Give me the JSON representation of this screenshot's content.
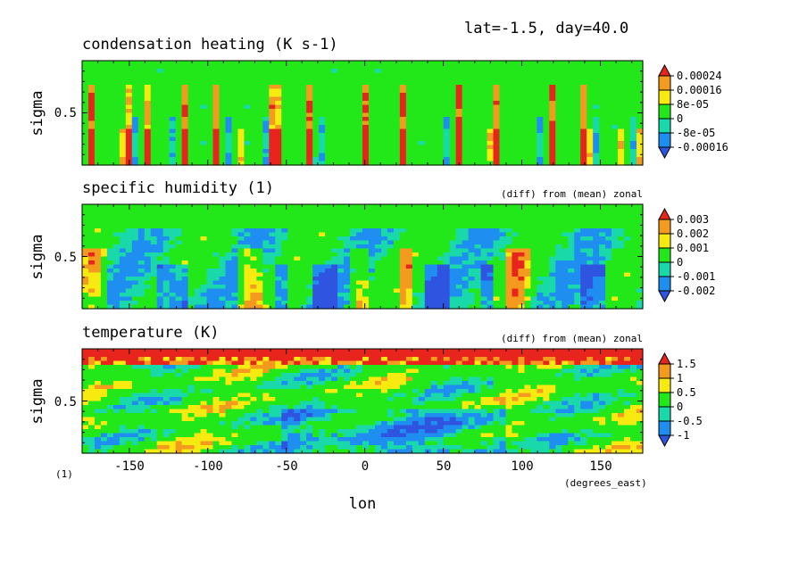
{
  "header": {
    "subtitle": "lat=-1.5, day=40.0"
  },
  "x_axis": {
    "label": "lon",
    "units": "(degrees_east)",
    "ticks": [
      "-150",
      "-100",
      "-50",
      "0",
      "50",
      "100",
      "150"
    ],
    "range": [
      -180,
      177
    ]
  },
  "footnote": "(1)",
  "chart_data": [
    {
      "type": "heatmap",
      "title": "condensation heating (K s-1)",
      "note": "",
      "ylabel": "sigma",
      "yticks": [
        "0.5"
      ],
      "colorbar": [
        "0.00024",
        "0.00016",
        "8e-05",
        "0",
        "-8e-05",
        "-0.00016"
      ],
      "colors": [
        "#e8251d",
        "#f39a1f",
        "#f7ea10",
        "#22e81a",
        "#19d9aa",
        "#1e8ff0",
        "#2f55e0"
      ]
    },
    {
      "type": "heatmap",
      "title": "specific humidity (1)",
      "note": "(diff) from (mean) zonal",
      "ylabel": "sigma",
      "yticks": [
        "0.5"
      ],
      "colorbar": [
        "0.003",
        "0.002",
        "0.001",
        "0",
        "-0.001",
        "-0.002"
      ],
      "colors": [
        "#e8251d",
        "#f39a1f",
        "#f7ea10",
        "#22e81a",
        "#19d9aa",
        "#1e8ff0",
        "#2f55e0"
      ]
    },
    {
      "type": "heatmap",
      "title": "temperature (K)",
      "note": "(diff) from (mean) zonal",
      "ylabel": "sigma",
      "yticks": [
        "0.5"
      ],
      "colorbar": [
        "1.5",
        "1",
        "0.5",
        "0",
        "-0.5",
        "-1"
      ],
      "colors": [
        "#e8251d",
        "#f39a1f",
        "#f7ea10",
        "#22e81a",
        "#19d9aa",
        "#1e8ff0",
        "#2f55e0"
      ]
    }
  ]
}
